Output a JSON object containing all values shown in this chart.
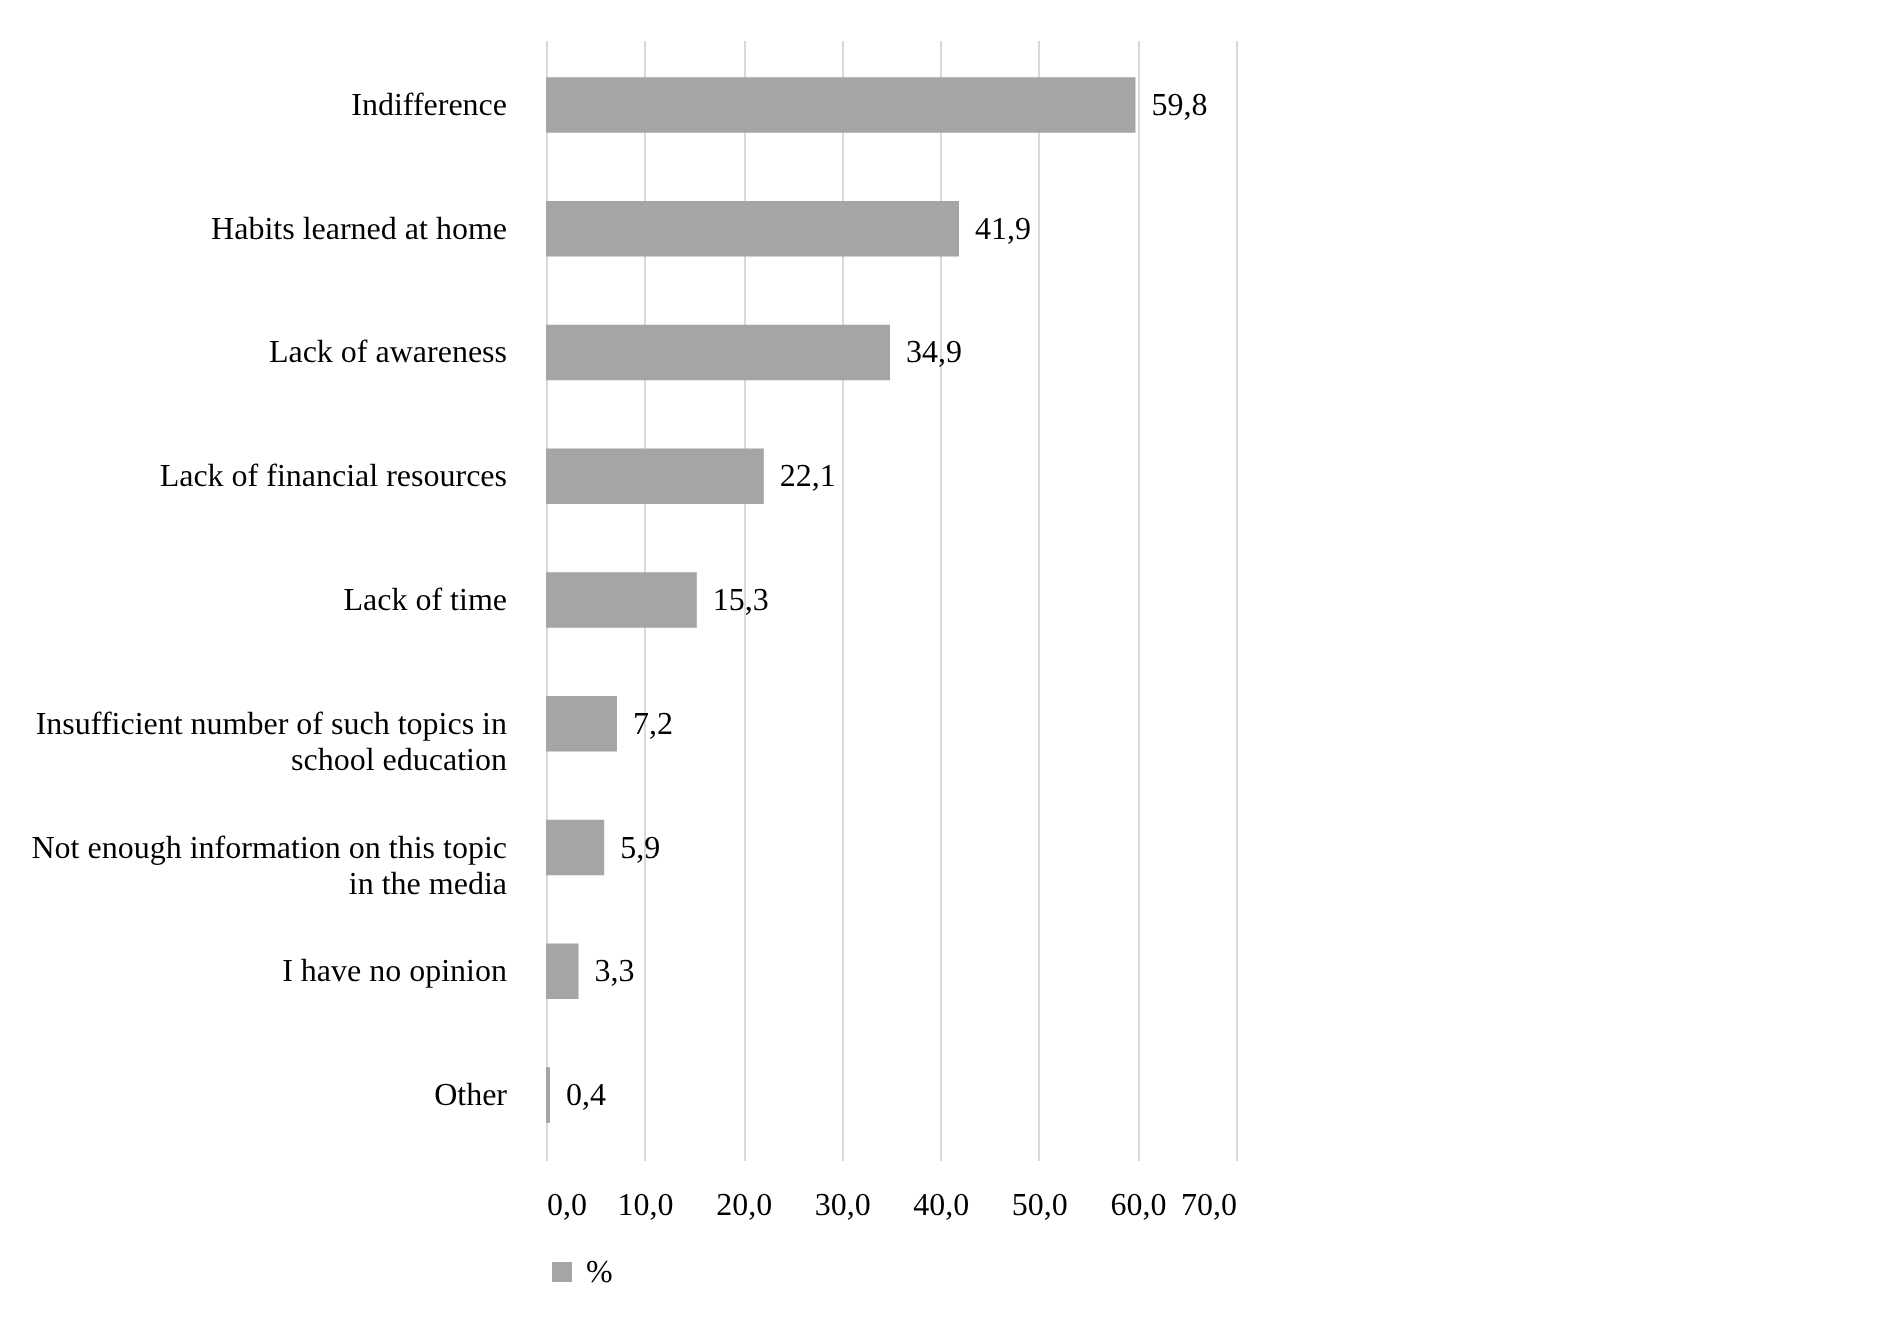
{
  "chart_data": {
    "type": "bar",
    "orientation": "horizontal",
    "categories": [
      "Indifference",
      "Habits learned at home",
      "Lack of awareness",
      "Lack of financial resources",
      "Lack of time",
      "Insufficient number of such topics in school education",
      "Not enough information on this topic in the media",
      "I have no opinion",
      "Other"
    ],
    "series": [
      {
        "name": "%",
        "color": "#a5a5a5",
        "values": [
          59.8,
          41.9,
          34.9,
          22.1,
          15.3,
          7.2,
          5.9,
          3.3,
          0.4
        ],
        "value_labels": [
          "59,8",
          "41,9",
          "34,9",
          "22,1",
          "15,3",
          "7,2",
          "5,9",
          "3,3",
          "0,4"
        ]
      }
    ],
    "xlim": [
      0,
      70
    ],
    "xticks": [
      {
        "value": 0,
        "label": "0,0"
      },
      {
        "value": 10,
        "label": "10,0"
      },
      {
        "value": 20,
        "label": "20,0"
      },
      {
        "value": 30,
        "label": "30,0"
      },
      {
        "value": 40,
        "label": "40,0"
      },
      {
        "value": 50,
        "label": "50,0"
      },
      {
        "value": 60,
        "label": "60,0"
      },
      {
        "value": 70,
        "label": "70,0"
      }
    ],
    "grid": "x",
    "legend": "bottom"
  }
}
